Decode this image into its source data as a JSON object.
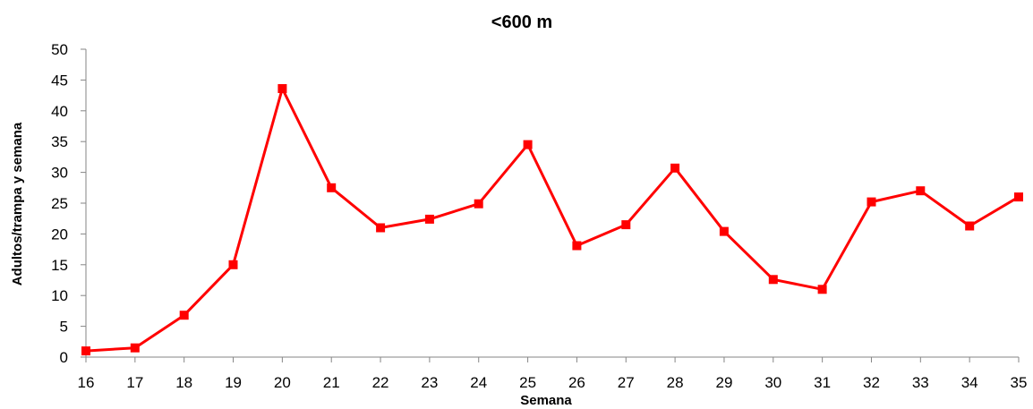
{
  "chart_data": {
    "type": "line",
    "title": "<600 m",
    "xlabel": "Semana",
    "ylabel": "Adultos/trampa y semana",
    "ylim": [
      0,
      50
    ],
    "y_ticks": [
      0,
      5,
      10,
      15,
      20,
      25,
      30,
      35,
      40,
      45,
      50
    ],
    "categories": [
      "16",
      "17",
      "18",
      "19",
      "20",
      "21",
      "22",
      "23",
      "24",
      "25",
      "26",
      "27",
      "28",
      "29",
      "30",
      "31",
      "32",
      "33",
      "34",
      "35"
    ],
    "series": [
      {
        "values": [
          1.0,
          1.5,
          6.8,
          15.0,
          43.6,
          27.5,
          21.0,
          22.4,
          24.9,
          34.5,
          18.1,
          21.5,
          30.7,
          20.4,
          12.6,
          11.0,
          25.2,
          27.0,
          21.3,
          26.0
        ],
        "color": "#ff0000",
        "marker": "square"
      }
    ],
    "grid": false,
    "legend": "none"
  }
}
